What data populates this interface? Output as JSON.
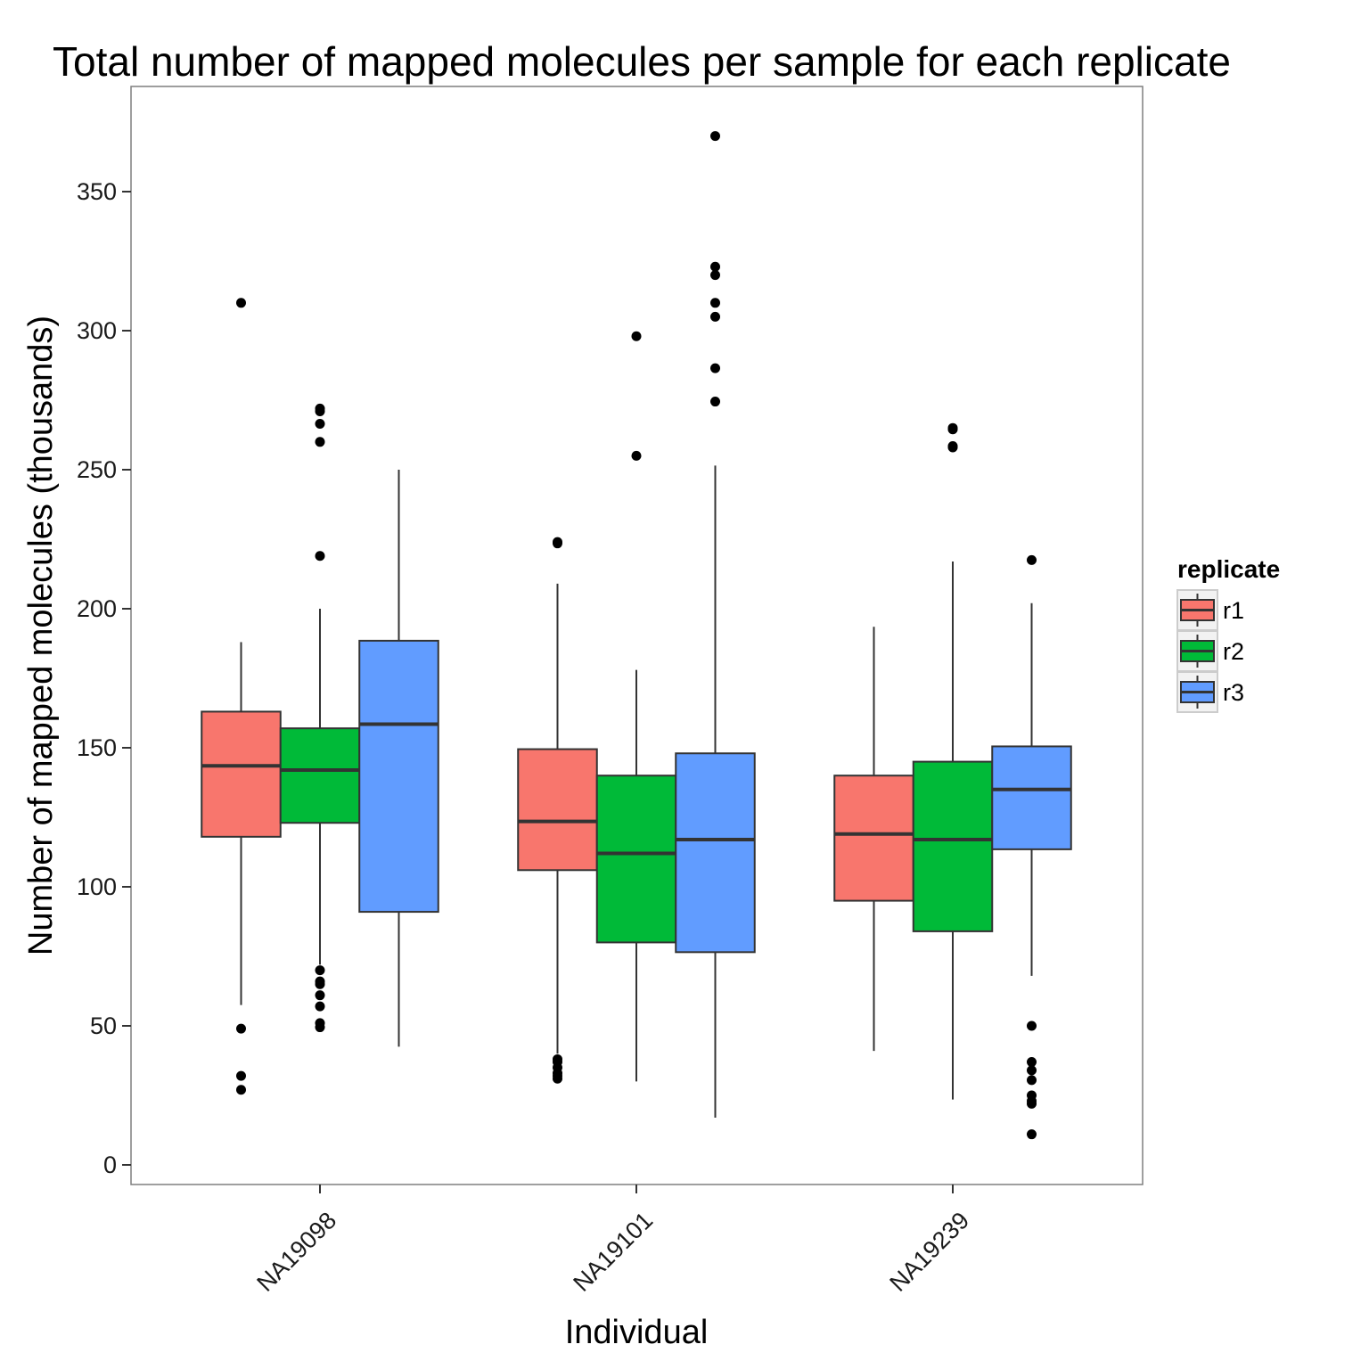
{
  "chart_data": {
    "type": "box",
    "title": "Total number of mapped molecules per sample for each replicate",
    "xlabel": "Individual",
    "ylabel": "Number of mapped molecules (thousands)",
    "ylim": [
      -7,
      388
    ],
    "yticks": [
      0,
      50,
      100,
      150,
      200,
      250,
      300,
      350
    ],
    "categories": [
      "NA19098",
      "NA19101",
      "NA19239"
    ],
    "legend": {
      "title": "replicate",
      "position": "right"
    },
    "grid": false,
    "series": [
      {
        "name": "r1",
        "color": "#F8766D",
        "boxes": [
          {
            "q1": 118,
            "median": 143.5,
            "q3": 163,
            "whisker_low": 57.5,
            "whisker_high": 188,
            "outliers": [
              310,
              49,
              32,
              27
            ]
          },
          {
            "q1": 106,
            "median": 123.5,
            "q3": 149.5,
            "whisker_low": 40,
            "whisker_high": 209,
            "outliers": [
              224,
              223.5,
              38,
              37,
              35,
              33,
              32,
              31
            ]
          },
          {
            "q1": 95,
            "median": 119,
            "q3": 140,
            "whisker_low": 41,
            "whisker_high": 193.5,
            "outliers": []
          }
        ]
      },
      {
        "name": "r2",
        "color": "#00BA38",
        "boxes": [
          {
            "q1": 123,
            "median": 142,
            "q3": 157,
            "whisker_low": 72,
            "whisker_high": 200,
            "outliers": [
              272,
              271,
              266.5,
              260,
              219,
              70,
              66,
              65,
              61,
              57,
              51,
              49.5
            ]
          },
          {
            "q1": 80,
            "median": 112,
            "q3": 140,
            "whisker_low": 30,
            "whisker_high": 178,
            "outliers": [
              298,
              255
            ]
          },
          {
            "q1": 84,
            "median": 117,
            "q3": 145,
            "whisker_low": 23.5,
            "whisker_high": 217,
            "outliers": [
              265,
              264.5,
              258.5,
              258
            ]
          }
        ]
      },
      {
        "name": "r3",
        "color": "#619CFF",
        "boxes": [
          {
            "q1": 91,
            "median": 158.5,
            "q3": 188.5,
            "whisker_low": 42.5,
            "whisker_high": 250,
            "outliers": []
          },
          {
            "q1": 76.5,
            "median": 117,
            "q3": 148,
            "whisker_low": 17,
            "whisker_high": 251.5,
            "outliers": [
              370,
              323,
              320,
              310,
              305,
              286.5,
              274.5
            ]
          },
          {
            "q1": 113.5,
            "median": 135,
            "q3": 150.5,
            "whisker_low": 68,
            "whisker_high": 202,
            "outliers": [
              217.5,
              50,
              37,
              34,
              30.5,
              25,
              23,
              22,
              11
            ]
          }
        ]
      }
    ]
  }
}
